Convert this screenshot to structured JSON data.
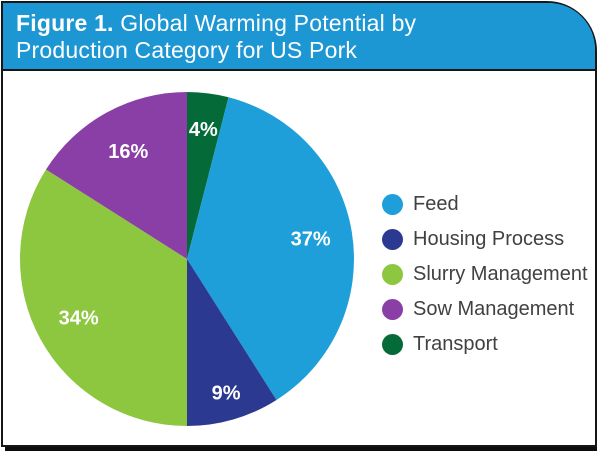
{
  "figure": {
    "title_prefix": "Figure 1.",
    "title_line1_rest": " Global Warming Potential by",
    "title_line2": "Production Category for US Pork"
  },
  "chart_data": {
    "type": "pie",
    "title": "Global Warming Potential by Production Category for US Pork",
    "unit": "percent",
    "slices": [
      {
        "label": "Feed",
        "value": 37,
        "pct_label": "37%",
        "color": "#1E9FD9"
      },
      {
        "label": "Housing Process",
        "value": 9,
        "pct_label": "9%",
        "color": "#2B3990"
      },
      {
        "label": "Slurry Management",
        "value": 34,
        "pct_label": "34%",
        "color": "#8DC63F"
      },
      {
        "label": "Sow Management",
        "value": 16,
        "pct_label": "16%",
        "color": "#8A3FA6"
      },
      {
        "label": "Transport",
        "value": 4,
        "pct_label": "4%",
        "color": "#046A38"
      }
    ],
    "start_slice": "Transport",
    "rotation": "clockwise-from-12-oclock",
    "legend_position": "right"
  },
  "colors": {
    "header_bg": "#1D97D4",
    "header_text": "#FFFFFF",
    "panel_border": "#161616",
    "panel_bg": "#FFFFFF",
    "slice_label_text": "#FFFFFF",
    "legend_text": "#414042"
  }
}
